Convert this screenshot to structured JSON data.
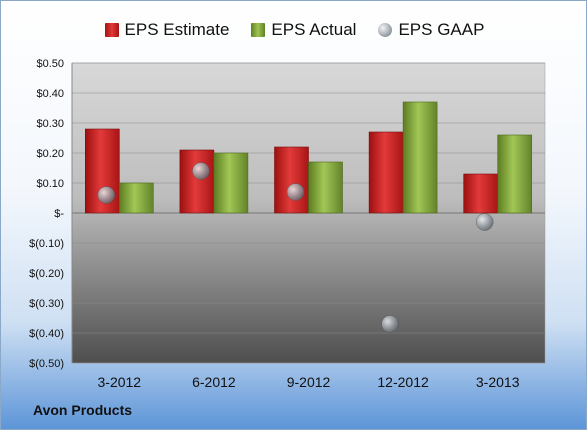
{
  "chart_data": {
    "type": "bar",
    "title": "",
    "xlabel": "",
    "ylabel": "",
    "categories": [
      "3-2012",
      "6-2012",
      "9-2012",
      "12-2012",
      "3-2013"
    ],
    "series": [
      {
        "name": "EPS Estimate",
        "kind": "bar",
        "color": "#d62424",
        "values": [
          0.28,
          0.21,
          0.22,
          0.27,
          0.13
        ]
      },
      {
        "name": "EPS Actual",
        "kind": "bar",
        "color": "#8db23f",
        "values": [
          0.1,
          0.2,
          0.17,
          0.37,
          0.26
        ]
      },
      {
        "name": "EPS GAAP",
        "kind": "scatter",
        "color": "#9fa6ad",
        "values": [
          0.06,
          0.14,
          0.07,
          -0.37,
          -0.03
        ]
      }
    ],
    "ylim": [
      -0.5,
      0.5
    ],
    "yticks": [
      0.5,
      0.4,
      0.3,
      0.2,
      0.1,
      0,
      -0.1,
      -0.2,
      -0.3,
      -0.4,
      -0.5
    ],
    "ytick_labels": [
      "$0.50",
      "$0.40",
      "$0.30",
      "$0.20",
      "$0.10",
      "$-",
      "$(0.10)",
      "$(0.20)",
      "$(0.30)",
      "$(0.40)",
      "$(0.50)"
    ],
    "grid": true,
    "legend_position": "top"
  },
  "company_name": "Avon Products"
}
